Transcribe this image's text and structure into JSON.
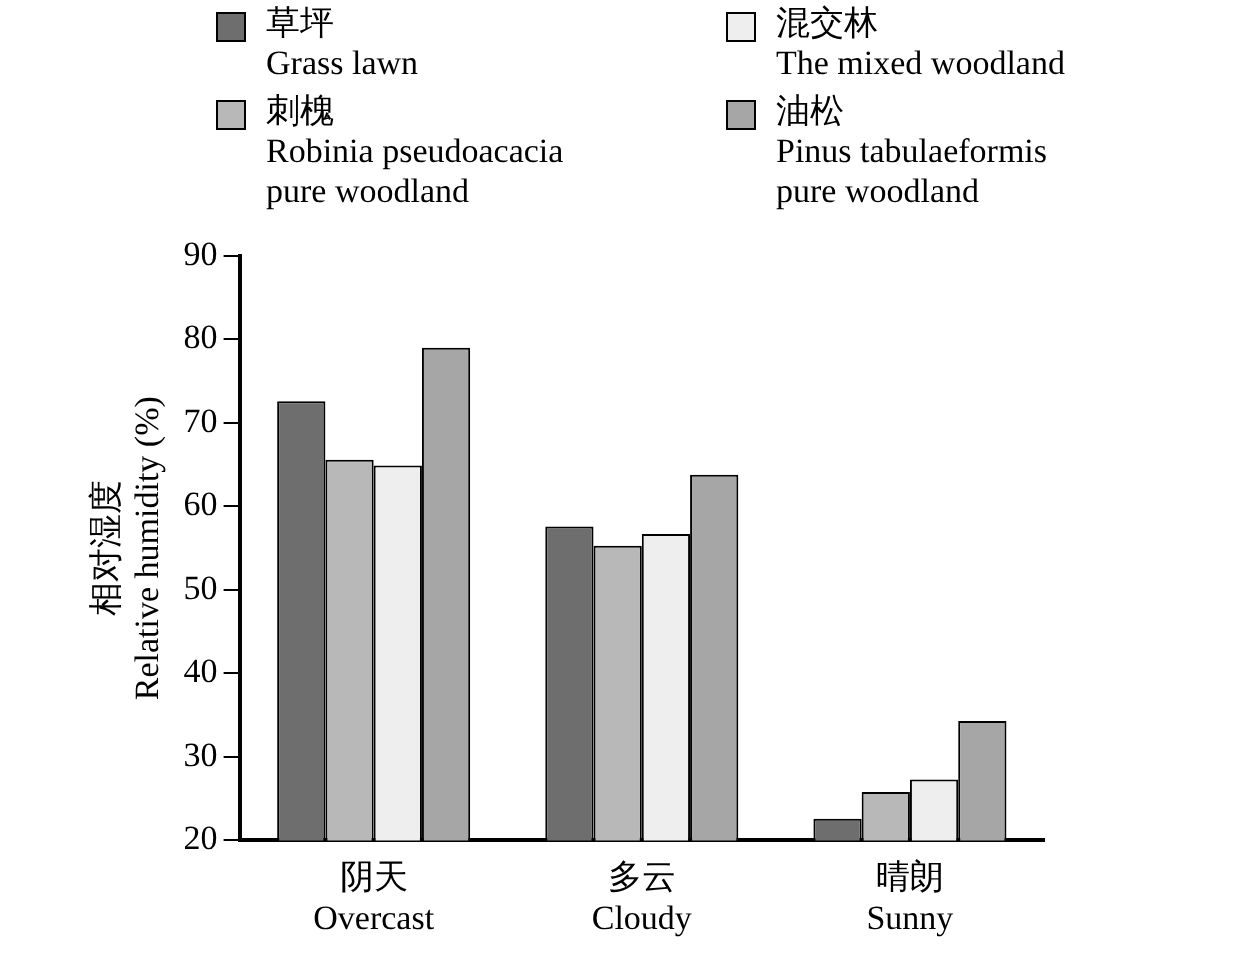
{
  "chart_data": {
    "type": "bar",
    "categories": [
      "阴天\nOvercast",
      "多云\nCloudy",
      "晴朗\nSunny"
    ],
    "ylabel": "相对湿度\nRelative humidity (%)",
    "series": [
      {
        "name": "草坪\nGrass lawn",
        "color": "#6e6e6e",
        "values": [
          72.6,
          57.6,
          22.6
        ]
      },
      {
        "name": "刺槐\nRobinia pseudoacacia\npure woodland",
        "color": "#b8b8b8",
        "values": [
          65.6,
          55.3,
          25.8
        ]
      },
      {
        "name": "混交林\nThe mixed woodland",
        "color": "#eeeeee",
        "values": [
          64.9,
          56.7,
          27.3
        ]
      },
      {
        "name": "油松\nPinus tabulaeformis\npure woodland",
        "color": "#a6a6a6",
        "values": [
          79.0,
          63.8,
          34.3
        ]
      }
    ],
    "ylim": [
      20,
      90
    ],
    "yticks": [
      20,
      30,
      40,
      50,
      60,
      70,
      80,
      90
    ],
    "grid": false,
    "legend": "top"
  }
}
